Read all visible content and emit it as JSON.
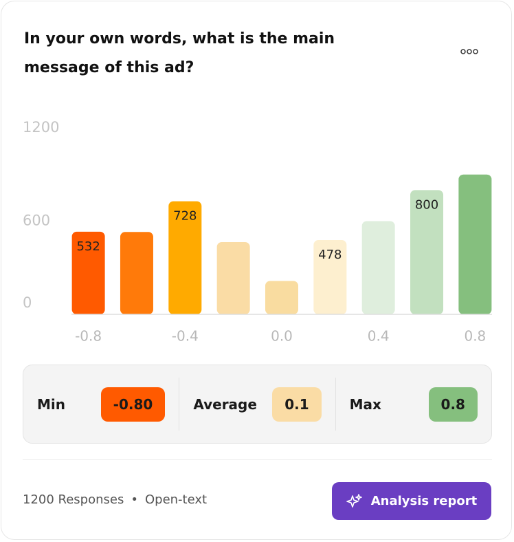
{
  "chart_data": {
    "type": "bar",
    "title": "In your own words, what is the main message of this ad?",
    "x": [
      -0.8,
      -0.6,
      -0.4,
      -0.2,
      0,
      0.2,
      0.4,
      0.6,
      0.8
    ],
    "values": [
      532,
      530,
      728,
      465,
      215,
      478,
      600,
      800,
      900
    ],
    "value_labels": [
      "532",
      null,
      "728",
      null,
      null,
      "478",
      null,
      "800",
      null
    ],
    "colors": [
      "#ff5a00",
      "#ff7a0a",
      "#ffaa00",
      "#fadca5",
      "#f9dca0",
      "#fdefcf",
      "#dfeedd",
      "#c2e0bf",
      "#85bf7e"
    ],
    "xlim": [
      -0.87,
      0.87
    ],
    "xticks": [
      -0.8,
      -0.4,
      {
        "value": 0,
        "label": "0.0"
      },
      0.4,
      0.8
    ],
    "ylim": [
      0,
      1200
    ],
    "yticks": [
      0,
      600,
      1200
    ],
    "grid": false
  },
  "stats": [
    {
      "label": "Min",
      "value": "-0.80",
      "color": "#ff5a00"
    },
    {
      "label": "Average",
      "value": "0.1",
      "color": "#fadca5"
    },
    {
      "label": "Max",
      "value": "0.8",
      "color": "#85bf7e"
    }
  ],
  "footer": {
    "responses": "1200 Responses",
    "kind": "Open-text",
    "button": "Analysis report"
  }
}
